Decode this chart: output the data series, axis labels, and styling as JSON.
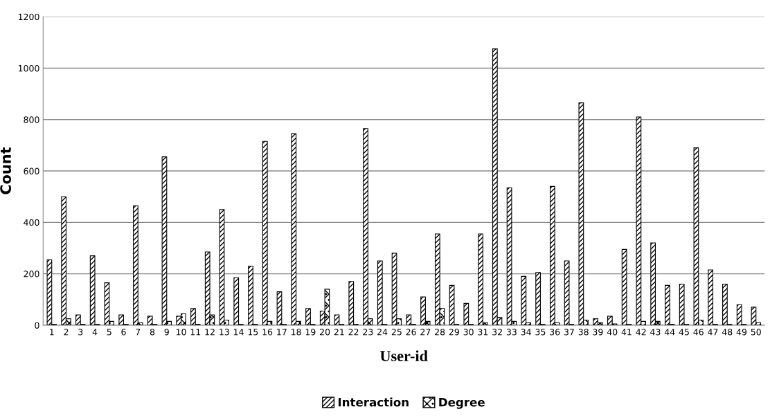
{
  "chart_data": {
    "type": "bar",
    "xlabel": "User-id",
    "ylabel": "Count",
    "categories": [
      "1",
      "2",
      "3",
      "4",
      "5",
      "6",
      "7",
      "8",
      "9",
      "10",
      "11",
      "12",
      "13",
      "14",
      "15",
      "16",
      "17",
      "18",
      "19",
      "20",
      "21",
      "22",
      "23",
      "24",
      "25",
      "26",
      "27",
      "28",
      "29",
      "30",
      "31",
      "32",
      "33",
      "34",
      "35",
      "36",
      "37",
      "38",
      "39",
      "40",
      "41",
      "42",
      "43",
      "44",
      "45",
      "46",
      "47",
      "48",
      "49",
      "50"
    ],
    "series": [
      {
        "name": "Interaction",
        "color": "#000000",
        "values": [
          255,
          500,
          40,
          270,
          165,
          40,
          465,
          35,
          655,
          35,
          65,
          285,
          450,
          185,
          230,
          715,
          130,
          745,
          65,
          55,
          40,
          170,
          765,
          250,
          280,
          40,
          110,
          355,
          155,
          85,
          355,
          1075,
          535,
          190,
          205,
          540,
          250,
          865,
          25,
          35,
          295,
          810,
          320,
          155,
          160,
          690,
          215,
          160,
          80,
          70
        ]
      },
      {
        "name": "Degree",
        "color": "#000000",
        "values": [
          3,
          25,
          3,
          3,
          15,
          3,
          10,
          3,
          15,
          45,
          3,
          40,
          20,
          3,
          3,
          15,
          3,
          15,
          3,
          140,
          3,
          3,
          25,
          3,
          25,
          3,
          15,
          65,
          3,
          3,
          10,
          30,
          15,
          10,
          3,
          10,
          3,
          20,
          10,
          5,
          3,
          15,
          15,
          3,
          3,
          20,
          3,
          3,
          3,
          10
        ]
      }
    ],
    "ylim": [
      0,
      1200
    ],
    "yticks": [
      0,
      200,
      400,
      600,
      800,
      1000,
      1200
    ],
    "grid": "y",
    "legend": "bottom"
  }
}
